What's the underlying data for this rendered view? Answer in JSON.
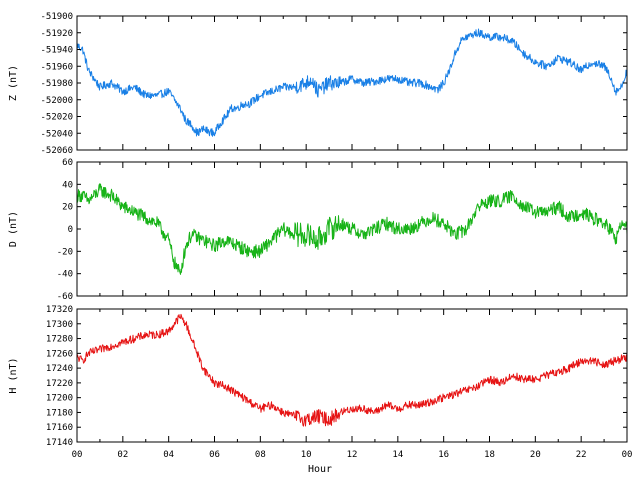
{
  "chart_data": [
    {
      "type": "line",
      "ylabel": "Z (nT)",
      "ylim": [
        -52060,
        -51900
      ],
      "yticks": [
        -52060,
        -52040,
        -52020,
        -52000,
        -51980,
        -51960,
        -51940,
        -51920,
        -51900
      ],
      "color": "#1a80e6",
      "x": [
        0,
        0.25,
        0.5,
        1,
        1.5,
        2,
        2.5,
        3,
        3.5,
        4,
        4.25,
        4.5,
        4.75,
        5,
        5.25,
        5.5,
        5.75,
        6,
        6.25,
        6.5,
        6.75,
        7,
        7.25,
        7.5,
        8,
        8.5,
        9,
        9.5,
        10,
        10.25,
        10.5,
        10.75,
        11,
        11.5,
        12,
        12.5,
        13,
        13.5,
        14,
        14.5,
        15,
        15.5,
        15.75,
        16,
        16.25,
        16.5,
        16.75,
        17,
        17.5,
        18,
        18.5,
        19,
        19.5,
        20,
        20.5,
        21,
        21.5,
        22,
        22.5,
        23,
        23.25,
        23.5,
        23.75,
        24
      ],
      "values": [
        -51935,
        -51940,
        -51965,
        -51985,
        -51980,
        -51990,
        -51985,
        -51995,
        -51995,
        -51990,
        -52000,
        -52010,
        -52025,
        -52030,
        -52040,
        -52035,
        -52038,
        -52040,
        -52028,
        -52020,
        -52010,
        -52010,
        -52005,
        -52005,
        -51995,
        -51990,
        -51985,
        -51985,
        -51980,
        -51975,
        -51990,
        -51985,
        -51980,
        -51980,
        -51975,
        -51980,
        -51978,
        -51975,
        -51975,
        -51980,
        -51980,
        -51985,
        -51988,
        -51980,
        -51965,
        -51945,
        -51930,
        -51925,
        -51920,
        -51925,
        -51925,
        -51930,
        -51945,
        -51955,
        -51960,
        -51950,
        -51955,
        -51965,
        -51955,
        -51960,
        -51970,
        -51990,
        -51985,
        -51965
      ]
    },
    {
      "type": "line",
      "ylabel": "D (nT)",
      "ylim": [
        -60,
        60
      ],
      "yticks": [
        -60,
        -40,
        -20,
        0,
        20,
        40,
        60
      ],
      "color": "#18b318",
      "x": [
        0,
        0.25,
        0.5,
        1,
        1.5,
        2,
        2.5,
        3,
        3.5,
        4,
        4.25,
        4.5,
        4.75,
        5,
        5.5,
        6,
        6.5,
        7,
        7.5,
        8,
        8.5,
        9,
        9.5,
        10,
        10.5,
        11,
        11.5,
        12,
        12.5,
        13,
        13.5,
        14,
        14.5,
        15,
        15.5,
        16,
        16.5,
        17,
        17.5,
        18,
        18.5,
        19,
        19.5,
        20,
        20.5,
        21,
        21.5,
        22,
        22.5,
        23,
        23.25,
        23.5,
        23.75,
        24
      ],
      "values": [
        30,
        30,
        25,
        35,
        30,
        20,
        15,
        10,
        5,
        -10,
        -30,
        -40,
        -15,
        -5,
        -10,
        -15,
        -10,
        -15,
        -20,
        -20,
        -10,
        0,
        -5,
        -5,
        -10,
        0,
        5,
        0,
        -5,
        0,
        5,
        0,
        0,
        5,
        10,
        5,
        -5,
        0,
        20,
        25,
        25,
        30,
        20,
        15,
        15,
        20,
        10,
        15,
        10,
        5,
        0,
        -10,
        5,
        0
      ]
    },
    {
      "type": "line",
      "ylabel": "H (nT)",
      "xlabel": "Hour",
      "ylim": [
        17140,
        17320
      ],
      "yticks": [
        17140,
        17160,
        17180,
        17200,
        17220,
        17240,
        17260,
        17280,
        17300,
        17320
      ],
      "xlim": [
        0,
        24
      ],
      "xticks": [
        "00",
        "02",
        "04",
        "06",
        "08",
        "10",
        "12",
        "14",
        "16",
        "18",
        "20",
        "22",
        "00"
      ],
      "color": "#e61414",
      "x": [
        0,
        0.25,
        0.5,
        1,
        1.5,
        2,
        2.5,
        3,
        3.5,
        4,
        4.25,
        4.5,
        4.75,
        5,
        5.25,
        5.5,
        5.75,
        6,
        6.5,
        7,
        7.5,
        8,
        8.5,
        9,
        9.5,
        10,
        10.5,
        11,
        11.5,
        12,
        12.5,
        13,
        13.5,
        14,
        14.5,
        15,
        15.5,
        16,
        16.5,
        17,
        17.5,
        18,
        18.5,
        19,
        19.5,
        20,
        20.5,
        21,
        21.5,
        22,
        22.5,
        23,
        23.5,
        24
      ],
      "values": [
        17255,
        17250,
        17260,
        17265,
        17270,
        17275,
        17280,
        17285,
        17285,
        17290,
        17300,
        17310,
        17300,
        17280,
        17260,
        17240,
        17230,
        17220,
        17215,
        17205,
        17195,
        17185,
        17190,
        17180,
        17175,
        17170,
        17175,
        17170,
        17180,
        17185,
        17185,
        17180,
        17190,
        17185,
        17190,
        17190,
        17195,
        17200,
        17205,
        17210,
        17215,
        17225,
        17220,
        17230,
        17225,
        17225,
        17230,
        17235,
        17240,
        17250,
        17250,
        17245,
        17250,
        17255
      ]
    }
  ]
}
